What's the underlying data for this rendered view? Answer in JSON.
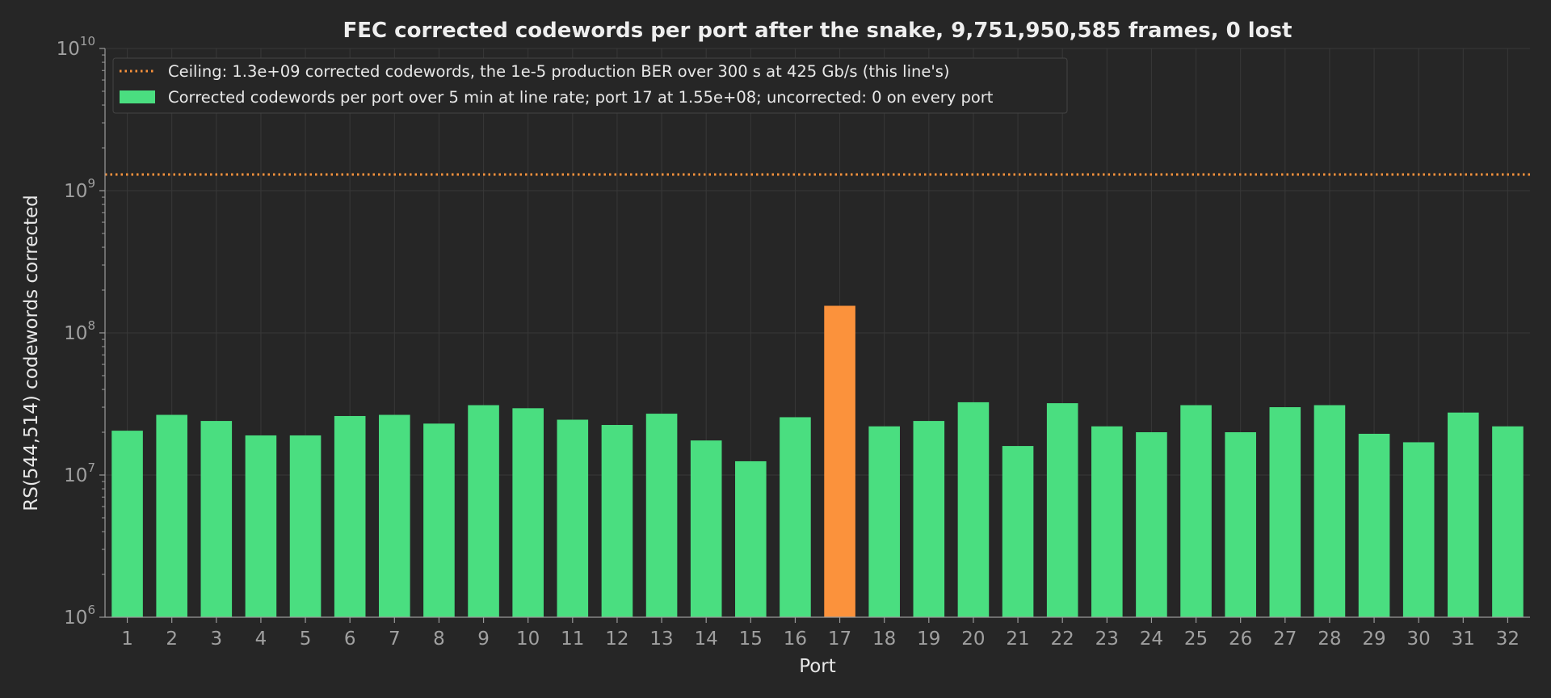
{
  "chart_data": {
    "type": "bar",
    "title": "FEC corrected codewords per port after the snake, 9,751,950,585 frames, 0 lost",
    "xlabel": "Port",
    "ylabel": "RS(544,514) codewords corrected",
    "yscale": "log",
    "ylim": [
      1000000,
      10000000000
    ],
    "ytick_labels": [
      {
        "base": "10",
        "exp": "6"
      },
      {
        "base": "10",
        "exp": "7"
      },
      {
        "base": "10",
        "exp": "8"
      },
      {
        "base": "10",
        "exp": "9"
      },
      {
        "base": "10",
        "exp": "10"
      }
    ],
    "grid": true,
    "legend_position": "top-left",
    "categories": [
      "1",
      "2",
      "3",
      "4",
      "5",
      "6",
      "7",
      "8",
      "9",
      "10",
      "11",
      "12",
      "13",
      "14",
      "15",
      "16",
      "17",
      "18",
      "19",
      "20",
      "21",
      "22",
      "23",
      "24",
      "25",
      "26",
      "27",
      "28",
      "29",
      "30",
      "31",
      "32"
    ],
    "series": [
      {
        "name": "Corrected codewords per port over 5 min at line rate; port 17 at 1.55e+08; uncorrected: 0 on every port",
        "color": "#4ade80",
        "highlight_color": "#fb923c",
        "highlight_category": "17",
        "values": [
          20500000,
          26500000,
          24000000,
          19000000,
          19000000,
          26000000,
          26500000,
          23000000,
          31000000,
          29500000,
          24500000,
          22500000,
          27000000,
          17500000,
          12500000,
          25500000,
          155000000,
          22000000,
          24000000,
          32500000,
          16000000,
          32000000,
          22000000,
          20000000,
          31000000,
          20000000,
          30000000,
          31000000,
          19500000,
          17000000,
          27500000,
          22000000
        ]
      }
    ],
    "reference_lines": [
      {
        "name": "Ceiling: 1.3e+09 corrected codewords, the 1e-5 production BER over 300 s at 425 Gb/s (this line's)",
        "value": 1300000000,
        "color": "#fb923c",
        "style": "dotted"
      }
    ]
  }
}
